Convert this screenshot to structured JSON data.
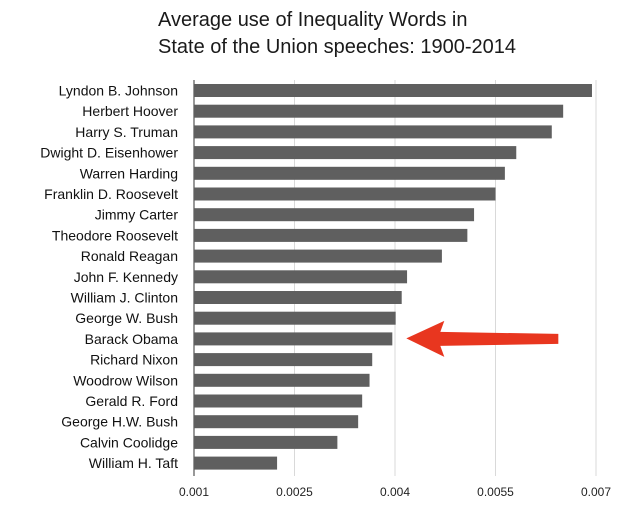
{
  "chart_data": {
    "type": "bar",
    "orientation": "horizontal",
    "title": [
      "Average use of Inequality Words in",
      "State of the Union speeches: 1900-2014"
    ],
    "categories": [
      "Lyndon B. Johnson",
      "Herbert Hoover",
      "Harry S. Truman",
      "Dwight D. Eisenhower",
      "Warren Harding",
      "Franklin D. Roosevelt",
      "Jimmy Carter",
      "Theodore Roosevelt",
      "Ronald Reagan",
      "John F. Kennedy",
      "William J. Clinton",
      "George W. Bush",
      "Barack Obama",
      "Richard Nixon",
      "Woodrow Wilson",
      "Gerald R. Ford",
      "George H.W. Bush",
      "Calvin Coolidge",
      "William H. Taft"
    ],
    "values": [
      0.00694,
      0.00651,
      0.00634,
      0.00581,
      0.00564,
      0.0055,
      0.00518,
      0.00508,
      0.0047,
      0.00418,
      0.0041,
      0.00401,
      0.00396,
      0.00366,
      0.00362,
      0.00351,
      0.00345,
      0.00314,
      0.00224
    ],
    "xlim": [
      0.001,
      0.007
    ],
    "xticks": [
      "0.001",
      "0.0025",
      "0.004",
      "0.0055",
      "0.007"
    ],
    "xtick_values": [
      0.001,
      0.0025,
      0.004,
      0.0055,
      0.007
    ],
    "xlabel": "",
    "ylabel": "",
    "grid": "vertical",
    "legend": "none",
    "annotation": {
      "type": "arrow",
      "points_to": "Barack Obama"
    },
    "colors": {
      "bar": "#5f5f5f",
      "grid": "#d9d9d9",
      "axis": "#555555",
      "arrow": "#e8361f"
    }
  }
}
